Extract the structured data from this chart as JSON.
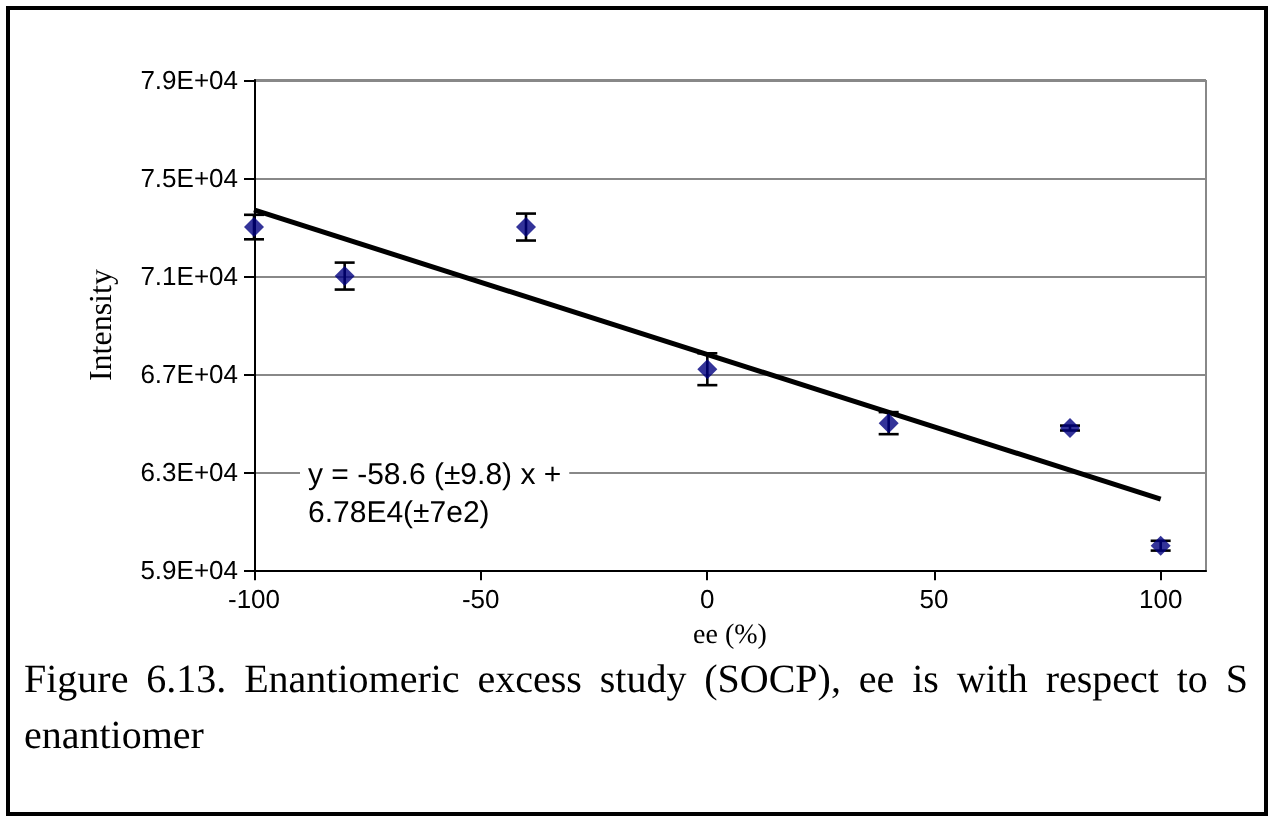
{
  "chart_data": {
    "type": "scatter",
    "xlabel": "ee (%)",
    "ylabel": "Intensity",
    "annotations": [
      "y = -58.6 (±9.8) x +\n6.78E4(±7e2)",
      "Figure 6.13.  Enantiomeric excess study (SOCP), ee is with respect to S enantiomer"
    ],
    "series": [
      {
        "color": "#000080",
        "x": [
          -100,
          -80,
          -40,
          0,
          40,
          80,
          100
        ],
        "values": [
          73000,
          71000,
          73000,
          67200,
          65000,
          64800,
          60000
        ],
        "errors": [
          500,
          550,
          550,
          650,
          450,
          100,
          200
        ],
        "marker": "diamond"
      },
      {
        "type": "line",
        "color": "#000000",
        "x": [
          -100,
          100
        ],
        "values": [
          73700,
          61900
        ],
        "marker": "none"
      }
    ],
    "xlim": [
      -100,
      110
    ],
    "xticks": [
      -100,
      -50,
      0,
      50,
      100
    ],
    "ylim": [
      59000,
      79000
    ],
    "yticks": [
      {
        "value": 59000,
        "label": "5.9E+04"
      },
      {
        "value": 63000,
        "label": "6.3E+04"
      },
      {
        "value": 67000,
        "label": "6.7E+04"
      },
      {
        "value": 71000,
        "label": "7.1E+04"
      },
      {
        "value": 75000,
        "label": "7.5E+04"
      },
      {
        "value": 79000,
        "label": "7.9E+04"
      }
    ],
    "grid": "y"
  }
}
